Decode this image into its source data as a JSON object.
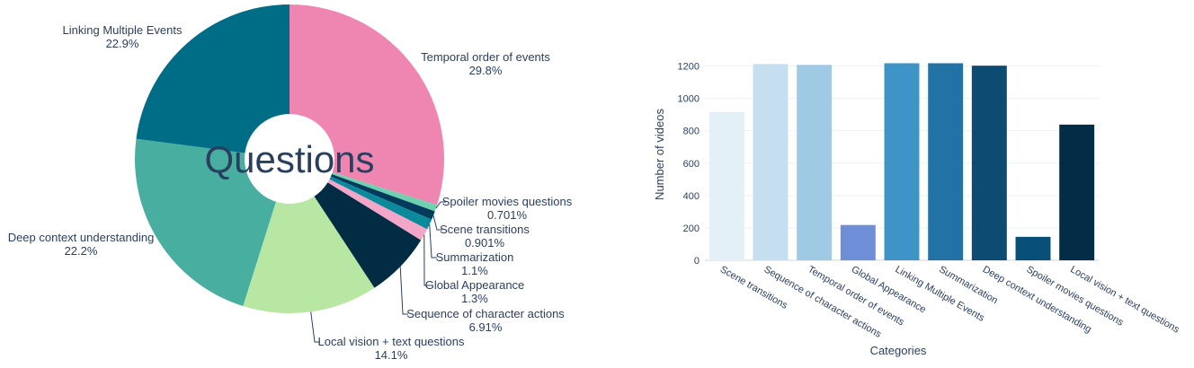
{
  "chart_data": [
    {
      "type": "pie",
      "center_text": "Questions",
      "slices": [
        {
          "label": "Temporal order of events",
          "value": 29.8,
          "pct_label": "29.8%",
          "color": "#ef86b2"
        },
        {
          "label": "Spoiler movies questions",
          "value": 0.701,
          "pct_label": "0.701%",
          "color": "#6fd0b0"
        },
        {
          "label": "Scene transitions",
          "value": 0.901,
          "pct_label": "0.901%",
          "color": "#003b5c"
        },
        {
          "label": "Summarization",
          "value": 1.1,
          "pct_label": "1.1%",
          "color": "#0b8a9c"
        },
        {
          "label": "Global Appearance",
          "value": 1.3,
          "pct_label": "1.3%",
          "color": "#f4a6c8"
        },
        {
          "label": "Sequence of character actions",
          "value": 6.91,
          "pct_label": "6.91%",
          "color": "#022b44"
        },
        {
          "label": "Local vision + text questions",
          "value": 14.1,
          "pct_label": "14.1%",
          "color": "#b8e6a3"
        },
        {
          "label": "Deep context understanding",
          "value": 22.2,
          "pct_label": "22.2%",
          "color": "#48afa0"
        },
        {
          "label": "Linking Multiple Events",
          "value": 22.9,
          "pct_label": "22.9%",
          "color": "#006d87"
        }
      ]
    },
    {
      "type": "bar",
      "categories": [
        "Scene transitions",
        "Sequence of character actions",
        "Temporal order of events",
        "Global Appearance",
        "Linking Multiple Events",
        "Summarization",
        "Deep context understanding",
        "Spoiler movies questions",
        "Local vision + text questions"
      ],
      "values": [
        915,
        1212,
        1207,
        218,
        1217,
        1217,
        1202,
        145,
        838
      ],
      "colors": [
        "#e3f0f8",
        "#c5dff0",
        "#a0c9e3",
        "#6e8fd8",
        "#3e94c6",
        "#2272a6",
        "#0e4b72",
        "#08507a",
        "#032d47"
      ],
      "xlabel": "Categories",
      "ylabel": "Number of videos",
      "ylim": [
        0,
        1275
      ],
      "yticks": [
        0,
        200,
        400,
        600,
        800,
        1000,
        1200
      ],
      "grid": true
    }
  ]
}
